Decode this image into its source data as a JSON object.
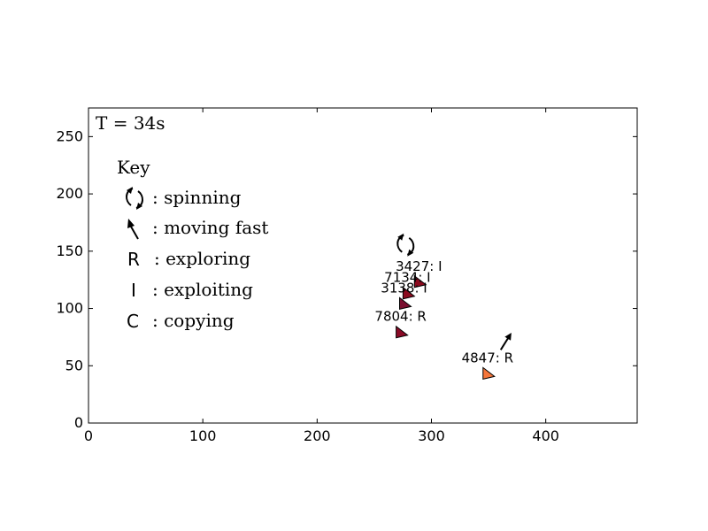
{
  "chart_data": {
    "type": "scatter",
    "title": "",
    "xlabel": "",
    "ylabel": "",
    "xlim": [
      0,
      480
    ],
    "ylim": [
      0,
      275
    ],
    "x_ticks": [
      0,
      100,
      200,
      300,
      400
    ],
    "y_ticks": [
      0,
      50,
      100,
      150,
      200,
      250
    ],
    "grid": false,
    "time_label": "T = 34s",
    "legend": {
      "title": "Key",
      "placement": "top-left",
      "entries": [
        {
          "icon": "spinning-icon",
          "symbol": "",
          "label": ": spinning"
        },
        {
          "icon": "moving-fast-arrow-icon",
          "symbol": "",
          "label": ": moving fast"
        },
        {
          "icon": "",
          "symbol": "R",
          "label": ": exploring"
        },
        {
          "icon": "",
          "symbol": "I",
          "label": ": exploiting"
        },
        {
          "icon": "",
          "symbol": "C",
          "label": ": copying"
        }
      ]
    },
    "points": [
      {
        "label": "3427: I",
        "x": 289,
        "y": 123,
        "color": "#8b0a1e",
        "spinning": true,
        "moving_fast": false
      },
      {
        "label": "7134: I",
        "x": 279,
        "y": 113,
        "color": "#8b0a1e",
        "spinning": false,
        "moving_fast": false
      },
      {
        "label": "3138: I",
        "x": 276,
        "y": 104,
        "color": "#7a0d2e",
        "spinning": false,
        "moving_fast": false
      },
      {
        "label": "7804: R",
        "x": 273,
        "y": 79,
        "color": "#8a0a26",
        "spinning": false,
        "moving_fast": false
      },
      {
        "label": "4847: R",
        "x": 349,
        "y": 43,
        "color": "#f5763b",
        "spinning": false,
        "moving_fast": true
      }
    ]
  }
}
